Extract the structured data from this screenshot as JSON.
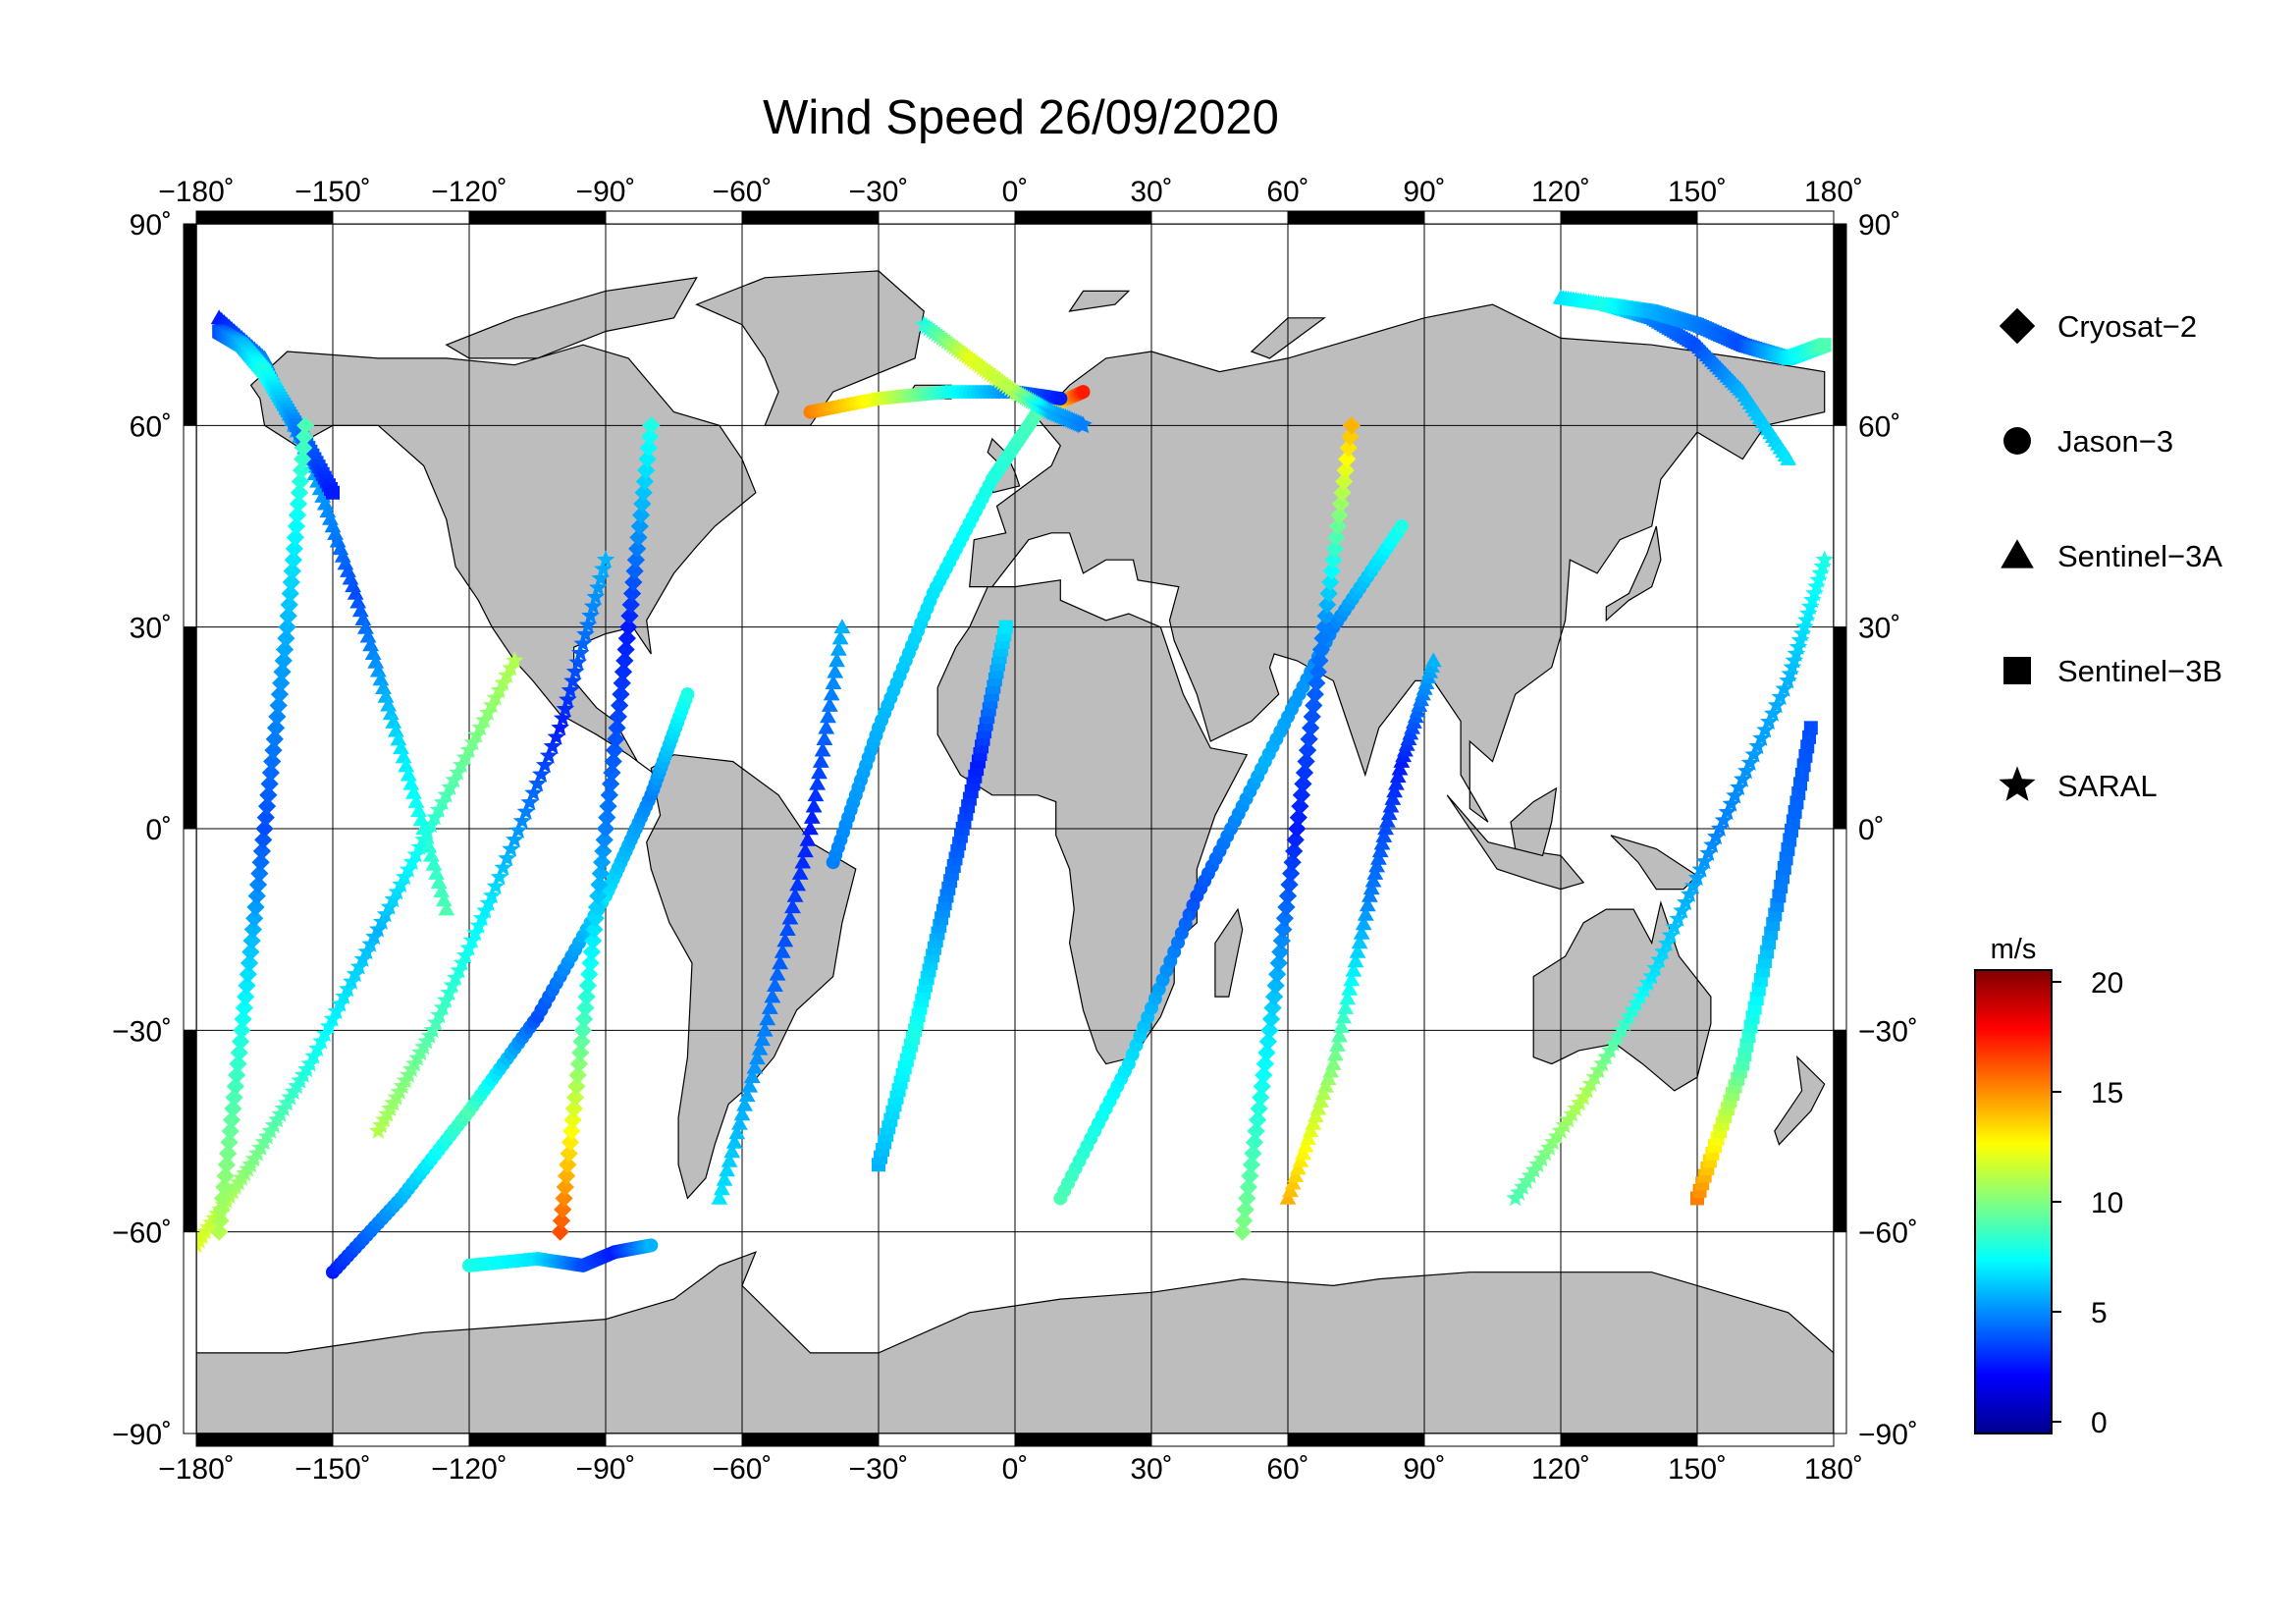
{
  "title": "Wind Speed 26/09/2020",
  "map": {
    "projection": "equirectangular",
    "lon_range": [
      -180,
      180
    ],
    "lat_range": [
      -90,
      90
    ],
    "lon_ticks": [
      "−180˚",
      "−150˚",
      "−120˚",
      "−90˚",
      "−60˚",
      "−30˚",
      "0˚",
      "30˚",
      "60˚",
      "90˚",
      "120˚",
      "150˚",
      "180˚"
    ],
    "lat_ticks": [
      "90˚",
      "60˚",
      "30˚",
      "0˚",
      "−30˚",
      "−60˚",
      "−90˚"
    ],
    "land_color": "#bdbdbd",
    "grid": true
  },
  "legend": {
    "items": [
      {
        "label": "Cryosat−2",
        "symbol": "diamond"
      },
      {
        "label": "Jason−3",
        "symbol": "circle"
      },
      {
        "label": "Sentinel−3A",
        "symbol": "triangle"
      },
      {
        "label": "Sentinel−3B",
        "symbol": "square"
      },
      {
        "label": "SARAL",
        "symbol": "star"
      }
    ]
  },
  "colorbar": {
    "unit": "m/s",
    "range": [
      0,
      20
    ],
    "ticks": [
      "20",
      "15",
      "10",
      "5",
      "0"
    ],
    "colormap": [
      "#00008f",
      "#0000ff",
      "#0080ff",
      "#00ffff",
      "#80ff80",
      "#ffff00",
      "#ff8000",
      "#ff0000",
      "#800000"
    ]
  },
  "chart_data": {
    "type": "scatter",
    "title": "Wind Speed 26/09/2020",
    "xlabel": "",
    "ylabel": "",
    "xlim": [
      -180,
      180
    ],
    "ylim": [
      -90,
      90
    ],
    "value_unit": "m/s",
    "value_range": [
      0,
      20
    ],
    "series": [
      {
        "name": "Jason−3",
        "symbol": "circle",
        "tracks": [
          {
            "lon": [
              -150,
              -135,
              -120,
              -105,
              -90,
              -80,
              -72
            ],
            "lat": [
              -66,
              -55,
              -42,
              -28,
              -10,
              5,
              20
            ],
            "v": [
              3,
              6,
              9,
              4,
              7,
              5,
              8
            ]
          },
          {
            "lon": [
              -120,
              -105,
              -95,
              -88,
              -80
            ],
            "lat": [
              -65,
              -64,
              -65,
              -63,
              -62
            ],
            "v": [
              8,
              7,
              4,
              3,
              6
            ]
          },
          {
            "lon": [
              -40,
              -30,
              -18,
              -5,
              5,
              15
            ],
            "lat": [
              -5,
              15,
              35,
              52,
              62,
              65
            ],
            "v": [
              5,
              6,
              7,
              8,
              9,
              17
            ]
          },
          {
            "lon": [
              -45,
              -30,
              -15,
              0,
              10
            ],
            "lat": [
              62,
              64,
              65,
              65,
              64
            ],
            "v": [
              15,
              12,
              8,
              5,
              3
            ]
          },
          {
            "lon": [
              10,
              25,
              40,
              55,
              70,
              85
            ],
            "lat": [
              -55,
              -35,
              -10,
              10,
              30,
              45
            ],
            "v": [
              9,
              7,
              4,
              6,
              5,
              8
            ]
          }
        ]
      },
      {
        "name": "SARAL",
        "symbol": "star",
        "tracks": [
          {
            "lon": [
              -180,
              -168,
              -155,
              -140,
              -125,
              -110
            ],
            "lat": [
              -62,
              -50,
              -35,
              -15,
              5,
              25
            ],
            "v": [
              12,
              10,
              8,
              6,
              9,
              11
            ]
          },
          {
            "lon": [
              -140,
              -128,
              -115,
              -100,
              -90
            ],
            "lat": [
              -45,
              -30,
              -10,
              15,
              40
            ],
            "v": [
              11,
              9,
              7,
              3,
              6
            ]
          },
          {
            "lon": [
              -20,
              -10,
              0,
              8,
              15
            ],
            "lat": [
              75,
              70,
              65,
              62,
              60
            ],
            "v": [
              8,
              12,
              11,
              6,
              5
            ]
          },
          {
            "lon": [
              110,
              125,
              140,
              155,
              170,
              178
            ],
            "lat": [
              -55,
              -40,
              -22,
              0,
              22,
              40
            ],
            "v": [
              9,
              11,
              7,
              5,
              6,
              8
            ]
          }
        ]
      },
      {
        "name": "Sentinel−3A",
        "symbol": "triangle",
        "tracks": [
          {
            "lon": [
              -175,
              -165,
              -155,
              -145,
              -135,
              -125
            ],
            "lat": [
              76,
              70,
              55,
              35,
              12,
              -12
            ],
            "v": [
              3,
              5,
              6,
              4,
              7,
              9
            ]
          },
          {
            "lon": [
              -65,
              -55,
              -45,
              -38
            ],
            "lat": [
              -55,
              -30,
              0,
              30
            ],
            "v": [
              7,
              5,
              3,
              6
            ]
          },
          {
            "lon": [
              120,
              130,
              140,
              150,
              160,
              170
            ],
            "lat": [
              79,
              78,
              76,
              72,
              65,
              55
            ],
            "v": [
              7,
              8,
              5,
              4,
              6,
              7
            ]
          },
          {
            "lon": [
              60,
              70,
              78,
              85,
              92
            ],
            "lat": [
              -55,
              -35,
              -10,
              10,
              25
            ],
            "v": [
              14,
              10,
              5,
              3,
              6
            ]
          }
        ]
      },
      {
        "name": "Sentinel−3B",
        "symbol": "square",
        "tracks": [
          {
            "lon": [
              -175,
              -170,
              -165,
              -158,
              -150
            ],
            "lat": [
              74,
              72,
              68,
              60,
              50
            ],
            "v": [
              4,
              6,
              8,
              5,
              3
            ]
          },
          {
            "lon": [
              -30,
              -22,
              -15,
              -8,
              -2
            ],
            "lat": [
              -50,
              -30,
              -10,
              10,
              30
            ],
            "v": [
              6,
              8,
              5,
              3,
              7
            ]
          },
          {
            "lon": [
              130,
              140,
              150,
              160,
              170,
              178
            ],
            "lat": [
              78,
              77,
              75,
              72,
              70,
              72
            ],
            "v": [
              8,
              6,
              5,
              4,
              7,
              9
            ]
          },
          {
            "lon": [
              150,
              160,
              168,
              175
            ],
            "lat": [
              -55,
              -35,
              -10,
              15
            ],
            "v": [
              15,
              9,
              5,
              4
            ]
          }
        ]
      },
      {
        "name": "Cryosat−2",
        "symbol": "diamond",
        "tracks": [
          {
            "lon": [
              -175,
              -170,
              -165,
              -160,
              -156
            ],
            "lat": [
              -60,
              -30,
              0,
              30,
              60
            ],
            "v": [
              11,
              8,
              4,
              6,
              9
            ]
          },
          {
            "lon": [
              50,
              56,
              62,
              68,
              74
            ],
            "lat": [
              -60,
              -30,
              0,
              30,
              60
            ],
            "v": [
              10,
              7,
              3,
              5,
              14
            ]
          },
          {
            "lon": [
              -100,
              -95,
              -90,
              -85,
              -80
            ],
            "lat": [
              -60,
              -30,
              0,
              30,
              60
            ],
            "v": [
              16,
              9,
              5,
              3,
              8
            ]
          }
        ]
      }
    ]
  }
}
